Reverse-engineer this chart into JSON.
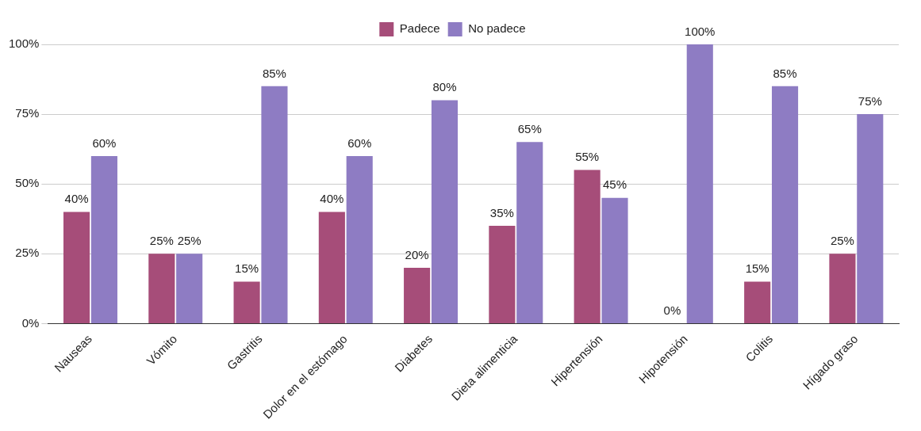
{
  "chart_data": {
    "type": "bar",
    "categories": [
      "Nauseas",
      "Vómito",
      "Gastritis",
      "Dolor en el estómago",
      "Diabetes",
      "Dieta alimenticia",
      "Hipertensión",
      "Hipotensión",
      "Colitis",
      "Hígado graso"
    ],
    "series": [
      {
        "name": "Padece",
        "color": "#a64d79",
        "values": [
          40,
          25,
          15,
          40,
          20,
          35,
          55,
          0,
          15,
          25
        ],
        "value_labels": [
          "40%",
          "25%",
          "15%",
          "40%",
          "20%",
          "35%",
          "55%",
          "0%",
          "15%",
          "25%"
        ]
      },
      {
        "name": "No padece",
        "color": "#8e7cc3",
        "values": [
          60,
          25,
          85,
          60,
          80,
          65,
          45,
          100,
          85,
          75
        ],
        "value_labels": [
          "60%",
          "25%",
          "85%",
          "60%",
          "80%",
          "65%",
          "45%",
          "100%",
          "85%",
          "75%"
        ]
      }
    ],
    "ylim": [
      0,
      100
    ],
    "yticks": [
      {
        "value": 0,
        "label": "0%"
      },
      {
        "value": 25,
        "label": "25%"
      },
      {
        "value": 50,
        "label": "50%"
      },
      {
        "value": 75,
        "label": "75%"
      },
      {
        "value": 100,
        "label": "100%"
      }
    ],
    "grid": "y",
    "legend": "top"
  }
}
